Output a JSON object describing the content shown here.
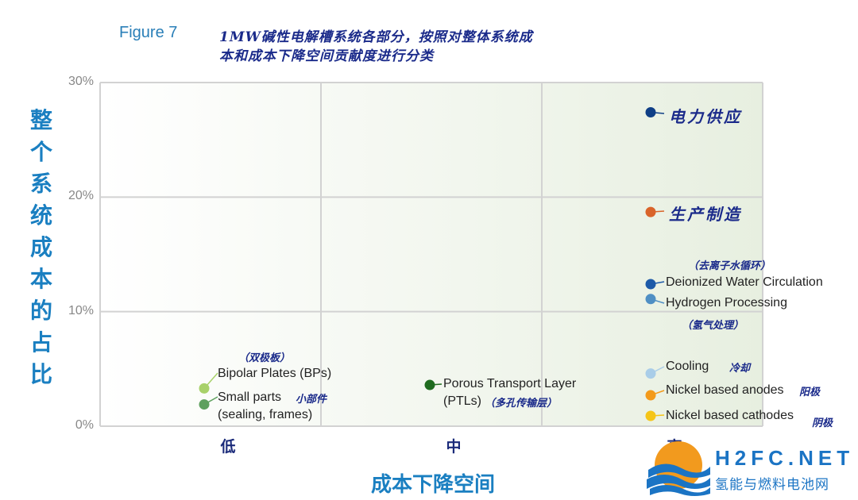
{
  "figure_label": "Figure 7",
  "title_line1": "1MW碱性电解槽系统各部分，按照对整体系统成",
  "title_line2": "本和成本下降空间贡献度进行分类",
  "logo": {
    "text_en": "H2FC.NET",
    "text_cn": "氢能与燃料电池网"
  },
  "colors": {
    "grid_bg_start": "#ffffff",
    "grid_bg_end": "#e7efe0",
    "grid_line": "#d2d2d2",
    "title_blue": "#1a2a8a",
    "axis_blue": "#1a7fc1"
  },
  "chart_data": {
    "type": "scatter",
    "title": "1MW碱性电解槽系统各部分，按照对整体系统成本和成本下降空间贡献度进行分类",
    "xlabel": "成本下降空间",
    "ylabel": "整个系统成本的占比",
    "x_categories": [
      "低",
      "中",
      "高"
    ],
    "y_ticks": [
      "0%",
      "10%",
      "20%",
      "30%"
    ],
    "ylim": [
      0,
      30
    ],
    "grid": true,
    "points": [
      {
        "id": "bp",
        "label_en": "Bipolar Plates (BPs)",
        "label_cn": "（双极板）",
        "x": "低",
        "y": 3.3,
        "color": "#a8d16a"
      },
      {
        "id": "sp",
        "label_en": "Small parts (sealing, frames)",
        "label_en_lines": [
          "Small parts",
          "(sealing, frames)"
        ],
        "label_cn": "小部件",
        "x": "低",
        "y": 1.9,
        "color": "#5ea05e"
      },
      {
        "id": "ptl",
        "label_en": "Porous Transport Layer (PTLs)",
        "label_en_lines": [
          "Porous Transport Layer",
          "(PTLs)"
        ],
        "label_cn": "（多孔传输层）",
        "x": "中",
        "y": 3.6,
        "color": "#1f6b1f"
      },
      {
        "id": "power",
        "label_en": "",
        "label_cn": "电力供应",
        "x": "高",
        "y": 27.4,
        "color": "#0f3f86"
      },
      {
        "id": "mfg",
        "label_en": "",
        "label_cn": "生产制造",
        "x": "高",
        "y": 18.7,
        "color": "#d9642a"
      },
      {
        "id": "diw",
        "label_en": "Deionized Water Circulation",
        "label_cn": "（去离子水循环）",
        "x": "高",
        "y": 12.4,
        "color": "#1d5aa8"
      },
      {
        "id": "h2p",
        "label_en": "Hydrogen Processing",
        "label_cn": "（氢气处理）",
        "x": "高",
        "y": 11.1,
        "color": "#4f8fc4"
      },
      {
        "id": "cool",
        "label_en": "Cooling",
        "label_cn": "冷却",
        "x": "高",
        "y": 4.6,
        "color": "#a9cde8"
      },
      {
        "id": "ani",
        "label_en": "Nickel based anodes",
        "label_cn": "阳极",
        "x": "高",
        "y": 2.7,
        "color": "#f39a1a"
      },
      {
        "id": "cat",
        "label_en": "Nickel based cathodes",
        "label_cn": "阴极",
        "x": "高",
        "y": 0.9,
        "color": "#f5c518"
      }
    ]
  }
}
